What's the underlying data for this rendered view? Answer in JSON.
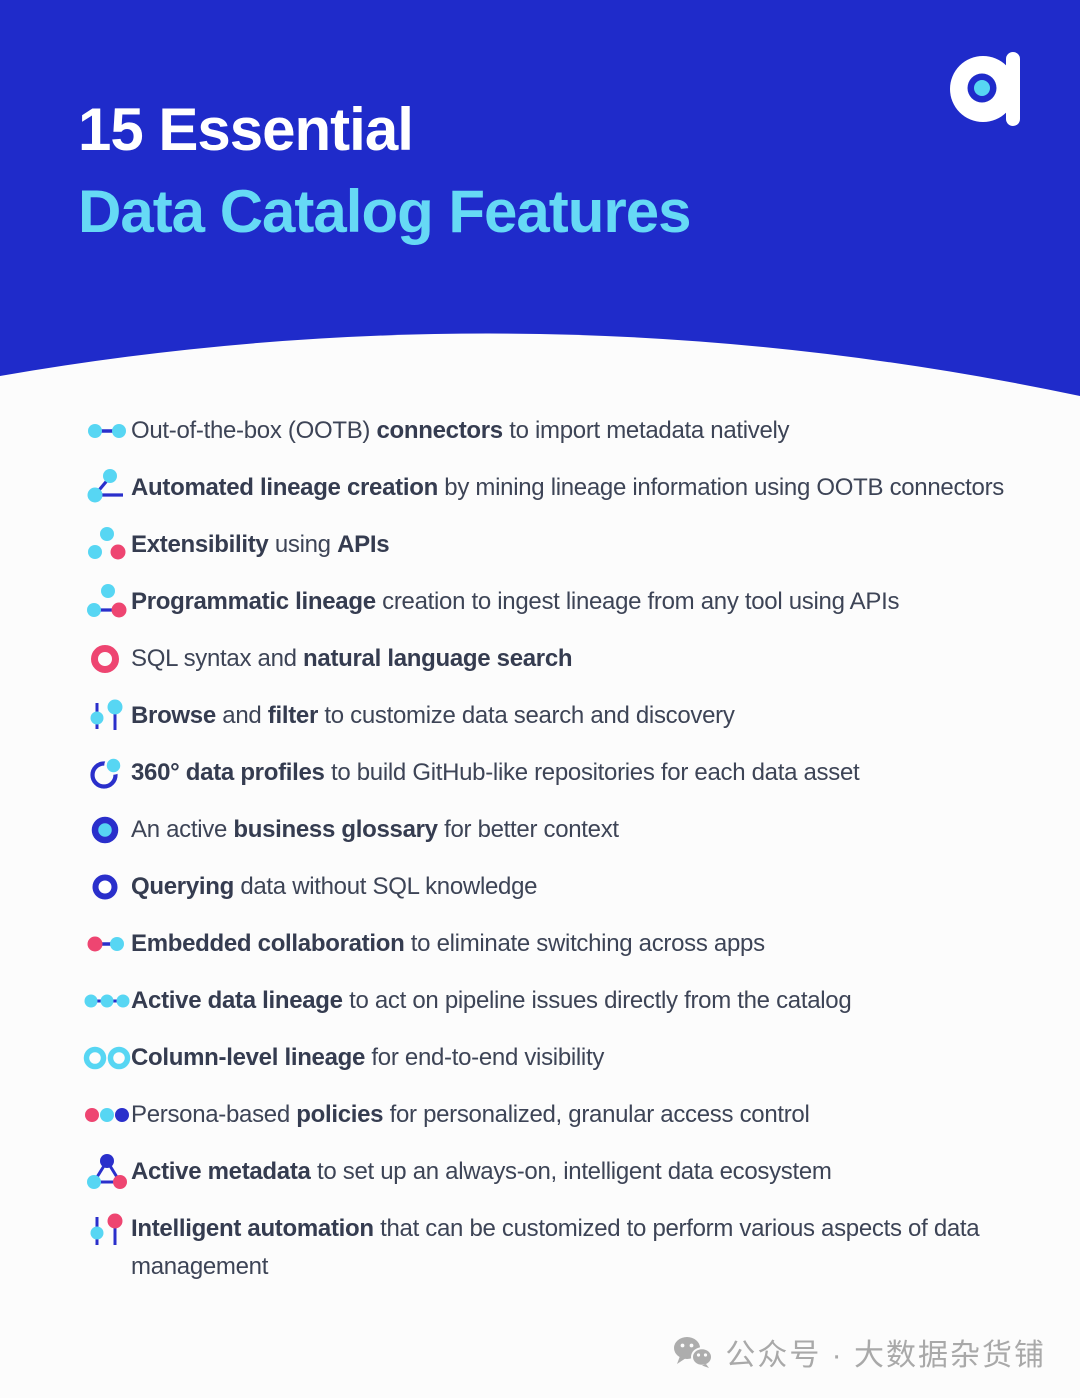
{
  "header": {
    "title_line1": "15 Essential",
    "title_line2": "Data Catalog Features",
    "logo": "atlan-logo"
  },
  "features": {
    "items": [
      {
        "icon": "ootb-connectors-icon",
        "segments": [
          {
            "text": "Out-of-the-box (OOTB) ",
            "bold": false
          },
          {
            "text": "connectors",
            "bold": true
          },
          {
            "text": " to import metadata natively",
            "bold": false
          }
        ]
      },
      {
        "icon": "automated-lineage-icon",
        "segments": [
          {
            "text": "Automated lineage creation",
            "bold": true
          },
          {
            "text": " by mining lineage information using OOTB connectors",
            "bold": false
          }
        ]
      },
      {
        "icon": "extensibility-icon",
        "segments": [
          {
            "text": "Extensibility",
            "bold": true
          },
          {
            "text": " using ",
            "bold": false
          },
          {
            "text": "APIs",
            "bold": true
          }
        ]
      },
      {
        "icon": "programmatic-lineage-icon",
        "segments": [
          {
            "text": "Programmatic lineage",
            "bold": true
          },
          {
            "text": " creation to ingest lineage from any tool using APIs",
            "bold": false
          }
        ]
      },
      {
        "icon": "search-ring-icon",
        "segments": [
          {
            "text": "SQL syntax and ",
            "bold": false
          },
          {
            "text": "natural language search",
            "bold": true
          }
        ]
      },
      {
        "icon": "browse-filter-icon",
        "segments": [
          {
            "text": "Browse",
            "bold": true
          },
          {
            "text": " and ",
            "bold": false
          },
          {
            "text": "filter",
            "bold": true
          },
          {
            "text": " to customize data search and discovery",
            "bold": false
          }
        ]
      },
      {
        "icon": "data-profile-icon",
        "segments": [
          {
            "text": "360° data profiles",
            "bold": true
          },
          {
            "text": " to build GitHub-like repositories for each data asset",
            "bold": false
          }
        ]
      },
      {
        "icon": "glossary-icon",
        "segments": [
          {
            "text": "An active ",
            "bold": false
          },
          {
            "text": "business glossary",
            "bold": true
          },
          {
            "text": " for better context",
            "bold": false
          }
        ]
      },
      {
        "icon": "querying-icon",
        "segments": [
          {
            "text": "Querying",
            "bold": true
          },
          {
            "text": " data without SQL knowledge",
            "bold": false
          }
        ]
      },
      {
        "icon": "collaboration-icon",
        "segments": [
          {
            "text": "Embedded collaboration",
            "bold": true
          },
          {
            "text": " to eliminate switching across apps",
            "bold": false
          }
        ]
      },
      {
        "icon": "active-lineage-icon",
        "segments": [
          {
            "text": "Active data lineage",
            "bold": true
          },
          {
            "text": " to act on pipeline issues directly from the catalog",
            "bold": false
          }
        ]
      },
      {
        "icon": "column-lineage-icon",
        "segments": [
          {
            "text": "Column-level lineage",
            "bold": true
          },
          {
            "text": " for end-to-end visibility",
            "bold": false
          }
        ]
      },
      {
        "icon": "policies-icon",
        "segments": [
          {
            "text": "Persona-based ",
            "bold": false
          },
          {
            "text": "policies",
            "bold": true
          },
          {
            "text": " for personalized, granular access control",
            "bold": false
          }
        ]
      },
      {
        "icon": "active-metadata-icon",
        "segments": [
          {
            "text": "Active metadata",
            "bold": true
          },
          {
            "text": " to set up an always-on, intelligent data ecosystem",
            "bold": false
          }
        ]
      },
      {
        "icon": "automation-icon",
        "segments": [
          {
            "text": "Intelligent automation",
            "bold": true
          },
          {
            "text": " that can be customized to perform various aspects of data management",
            "bold": false
          }
        ]
      }
    ]
  },
  "watermark": {
    "icon": "wechat-icon",
    "text": "公众号 · 大数据杂货铺"
  },
  "palette": {
    "blue": "#1f2bca",
    "iconblue": "#2a2fcb",
    "cyan": "#57d6f3",
    "pink": "#ee4571",
    "titlecyan": "#66d9f5",
    "text": "#3d4456",
    "bg": "#fcfcfc",
    "gray": "#a9a9a9"
  }
}
